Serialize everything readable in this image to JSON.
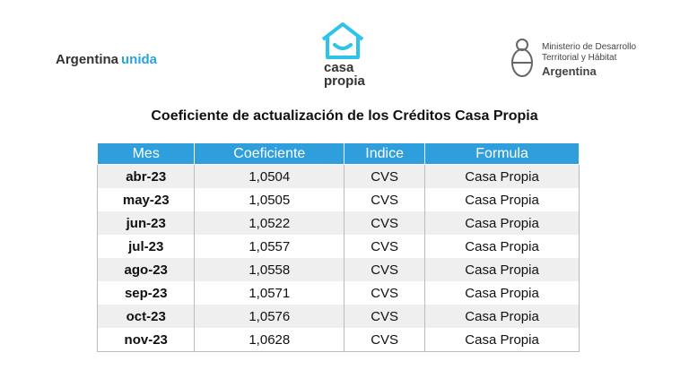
{
  "header": {
    "brand": {
      "part1": "Argentina",
      "part2": "unida"
    },
    "logo": {
      "line1": "casa",
      "line2": "propia"
    },
    "ministry": {
      "line1": "Ministerio de Desarrollo",
      "line2": "Territorial y Hábitat",
      "line3": "Argentina"
    }
  },
  "title": "Coeficiente de actualización de los Créditos Casa Propia",
  "table": {
    "columns": [
      "Mes",
      "Coeficiente",
      "Indice",
      "Formula"
    ],
    "rows": [
      [
        "abr-23",
        "1,0504",
        "CVS",
        "Casa Propia"
      ],
      [
        "may-23",
        "1,0505",
        "CVS",
        "Casa Propia"
      ],
      [
        "jun-23",
        "1,0522",
        "CVS",
        "Casa Propia"
      ],
      [
        "jul-23",
        "1,0557",
        "CVS",
        "Casa Propia"
      ],
      [
        "ago-23",
        "1,0558",
        "CVS",
        "Casa Propia"
      ],
      [
        "sep-23",
        "1,0571",
        "CVS",
        "Casa Propia"
      ],
      [
        "oct-23",
        "1,0576",
        "CVS",
        "Casa Propia"
      ],
      [
        "nov-23",
        "1,0628",
        "CVS",
        "Casa Propia"
      ]
    ]
  }
}
